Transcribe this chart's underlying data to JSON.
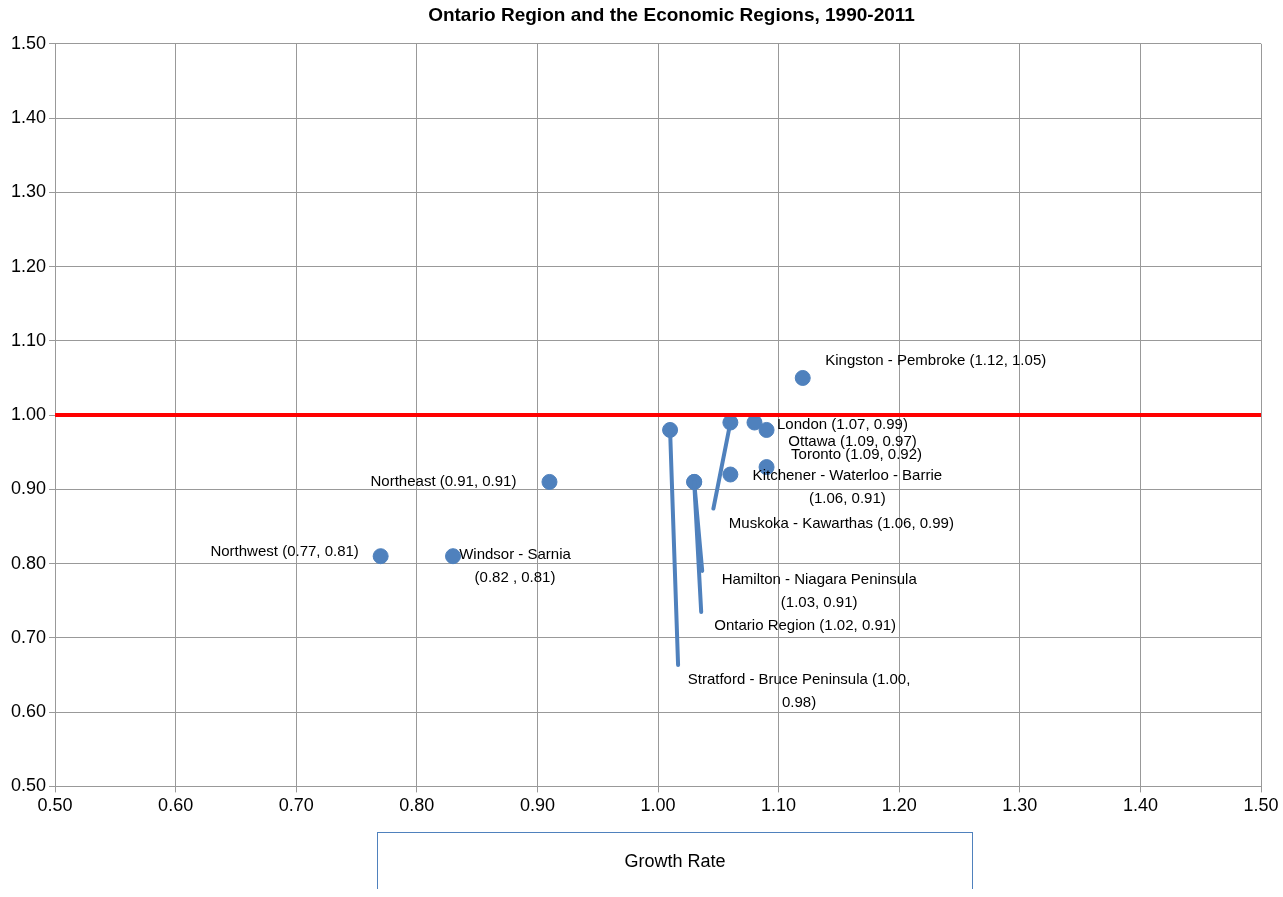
{
  "chart_data": {
    "type": "scatter",
    "title": "Ontario Region and the Economic Regions, 1990-2011",
    "xlabel": "Growth Rate",
    "x": [
      0.77,
      0.83,
      0.91,
      1.01,
      1.03,
      1.03,
      1.06,
      1.06,
      1.08,
      1.09,
      1.09,
      1.12
    ],
    "series": [
      {
        "color": "#4f81bd",
        "values": [
          0.81,
          0.81,
          0.91,
          0.98,
          0.91,
          0.91,
          0.92,
          0.99,
          0.99,
          0.98,
          0.93,
          1.05
        ],
        "value_labels": [
          "Northwest (0.77, 0.81)",
          "Windsor - Sarnia (0.82 , 0.81)",
          "Northeast (0.91, 0.91)",
          "Stratford - Bruce Peninsula (1.00, 0.98)",
          "Ontario Region (1.02, 0.91)",
          "Hamilton - Niagara Peninsula (1.03, 0.91)",
          "Kitchener - Waterloo - Barrie (1.06, 0.91)",
          "Muskoka - Kawarthas (1.06, 0.99)",
          "London (1.07, 0.99)",
          "Ottawa (1.09, 0.97)",
          "Toronto (1.09, 0.92)",
          "Kingston - Pembroke (1.12, 1.05)"
        ]
      }
    ],
    "marker": "circle",
    "grid": true,
    "legend": false,
    "ref_lines": [
      {
        "axis": "y",
        "value": 1.0,
        "color": "#ff0000"
      }
    ],
    "xlim": [
      0.5,
      1.5
    ],
    "xticks": [
      {
        "value": 0.5,
        "label": "0.50"
      },
      {
        "value": 0.6,
        "label": "0.60"
      },
      {
        "value": 0.7,
        "label": "0.70"
      },
      {
        "value": 0.8,
        "label": "0.80"
      },
      {
        "value": 0.9,
        "label": "0.90"
      },
      {
        "value": 1.0,
        "label": "1.00"
      },
      {
        "value": 1.1,
        "label": "1.10"
      },
      {
        "value": 1.2,
        "label": "1.20"
      },
      {
        "value": 1.3,
        "label": "1.30"
      },
      {
        "value": 1.4,
        "label": "1.40"
      },
      {
        "value": 1.5,
        "label": "1.50"
      }
    ],
    "ylim": [
      0.5,
      1.5
    ],
    "yticks": [
      {
        "value": 0.5,
        "label": "0.50"
      },
      {
        "value": 0.6,
        "label": "0.60"
      },
      {
        "value": 0.7,
        "label": "0.70"
      },
      {
        "value": 0.8,
        "label": "0.80"
      },
      {
        "value": 0.9,
        "label": "0.90"
      },
      {
        "value": 1.0,
        "label": "1.00"
      },
      {
        "value": 1.1,
        "label": "1.10"
      },
      {
        "value": 1.2,
        "label": "1.20"
      },
      {
        "value": 1.3,
        "label": "1.30"
      },
      {
        "value": 1.4,
        "label": "1.40"
      },
      {
        "value": 1.5,
        "label": "1.50"
      }
    ]
  }
}
